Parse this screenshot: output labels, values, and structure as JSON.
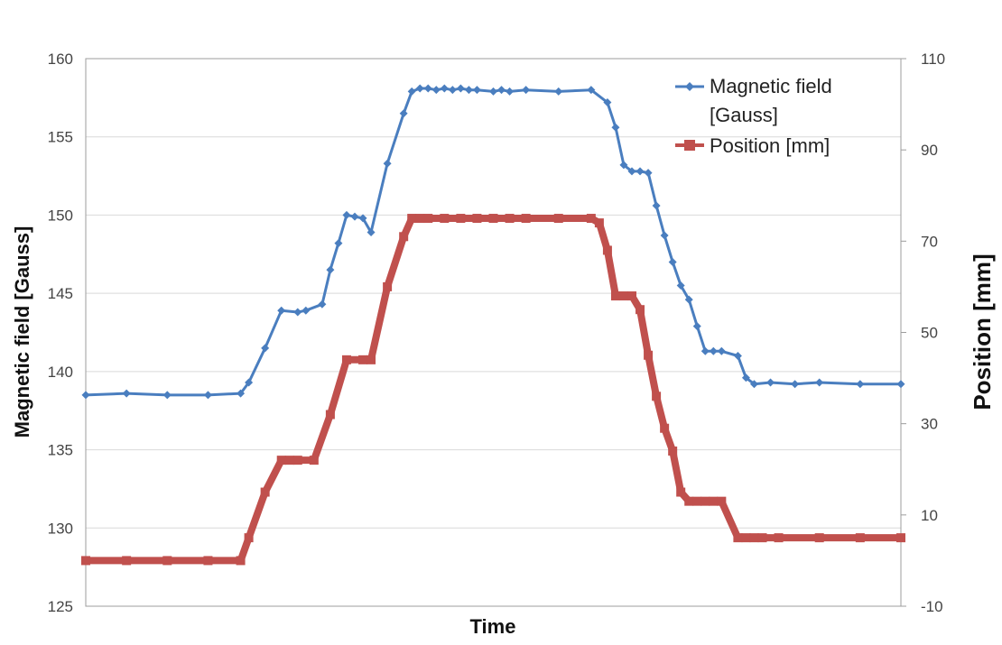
{
  "chart_data": {
    "type": "line",
    "xlabel": "Time",
    "ylabel_left": "Magnetic field [Gauss]",
    "ylabel_right": "Position [mm]",
    "ylim_left": [
      125,
      160
    ],
    "yticks_left": [
      125,
      130,
      135,
      140,
      145,
      150,
      155,
      160
    ],
    "ylim_right": [
      -10,
      110
    ],
    "yticks_right": [
      -10,
      10,
      30,
      50,
      70,
      90,
      110
    ],
    "xlim": [
      0,
      100
    ],
    "grid": true,
    "legend": "top-right",
    "series": [
      {
        "name": "Magnetic field [Gauss]",
        "legend_lines": [
          "Magnetic field",
          "[Gauss]"
        ],
        "axis": "left",
        "color": "#4a7ebf",
        "marker": "diamond",
        "x": [
          0,
          5,
          10,
          15,
          19,
          20,
          22,
          24,
          26,
          27,
          29,
          30,
          31,
          32,
          33,
          34,
          35,
          37,
          39,
          40,
          41,
          42,
          43,
          44,
          45,
          46,
          47,
          48,
          50,
          51,
          52,
          54,
          58,
          62,
          64,
          65,
          66,
          67,
          68,
          69,
          70,
          71,
          72,
          73,
          74,
          75,
          76,
          77,
          78,
          80,
          81,
          82,
          84,
          87,
          90,
          95,
          100
        ],
        "values": [
          138.5,
          138.6,
          138.5,
          138.5,
          138.6,
          139.3,
          141.5,
          143.9,
          143.8,
          143.9,
          144.3,
          146.5,
          148.2,
          150.0,
          149.9,
          149.8,
          148.9,
          153.3,
          156.5,
          157.9,
          158.1,
          158.1,
          158.0,
          158.1,
          158.0,
          158.1,
          158.0,
          158.0,
          157.9,
          158.0,
          157.9,
          158.0,
          157.9,
          158.0,
          157.2,
          155.6,
          153.2,
          152.8,
          152.8,
          152.7,
          150.6,
          148.7,
          147.0,
          145.5,
          144.6,
          142.9,
          141.3,
          141.3,
          141.3,
          141.0,
          139.6,
          139.2,
          139.3,
          139.2,
          139.3,
          139.2,
          139.2
        ]
      },
      {
        "name": "Position [mm]",
        "legend_lines": [
          "Position [mm]"
        ],
        "axis": "right",
        "color": "#c0504d",
        "marker": "square",
        "x": [
          0,
          5,
          10,
          15,
          19,
          20,
          22,
          24,
          25,
          26,
          28,
          30,
          32,
          34,
          35,
          37,
          39,
          40,
          41,
          42,
          44,
          46,
          48,
          50,
          52,
          54,
          58,
          62,
          63,
          64,
          65,
          66,
          67,
          68,
          69,
          70,
          71,
          72,
          73,
          74,
          75,
          76,
          77,
          78,
          80,
          81,
          82,
          83,
          85,
          90,
          95,
          100
        ],
        "values": [
          0,
          0,
          0,
          0,
          0,
          5,
          15,
          22,
          22,
          22,
          22,
          32,
          44,
          44,
          44,
          60,
          71,
          75,
          75,
          75,
          75,
          75,
          75,
          75,
          75,
          75,
          75,
          75,
          74,
          68,
          58,
          58,
          58,
          55,
          45,
          36,
          29,
          24,
          15,
          13,
          13,
          13,
          13,
          13,
          5,
          5,
          5,
          5,
          5,
          5,
          5,
          5
        ]
      }
    ]
  }
}
